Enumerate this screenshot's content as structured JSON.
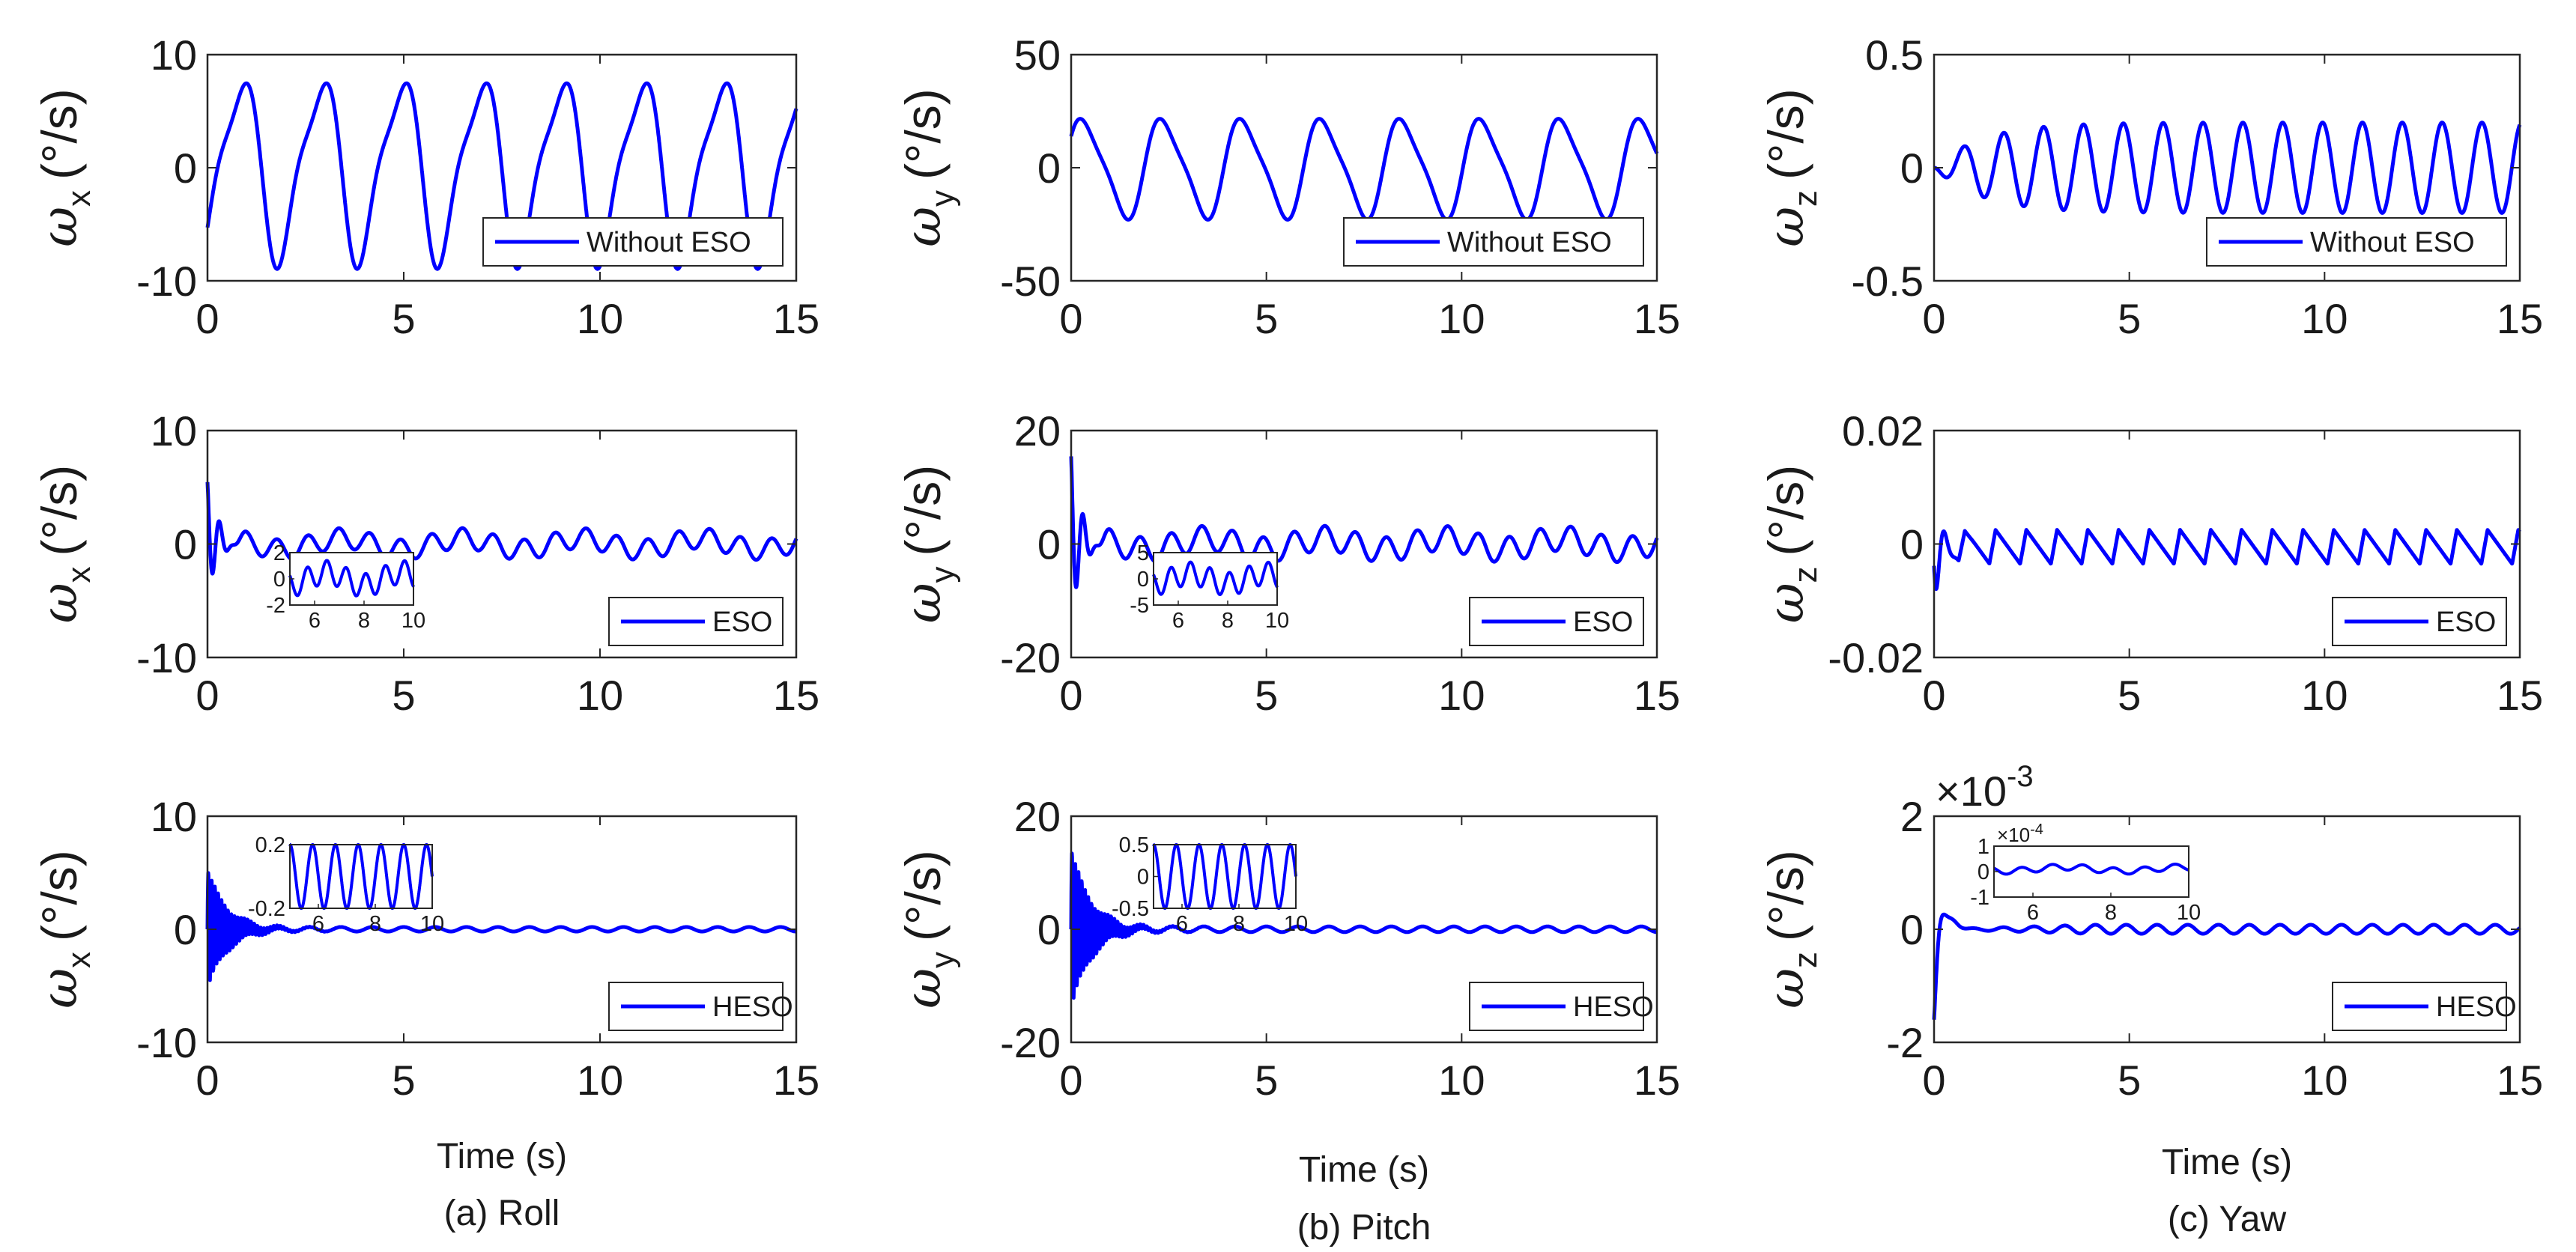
{
  "chart_data": [
    {
      "id": "roll-without-eso",
      "type": "line",
      "column": "(a) Roll",
      "ylabel": "ω",
      "ysub": "x",
      "yunit": "(°/s)",
      "legend": "Without ESO",
      "legend_pos": "bottom-right",
      "xlim": [
        0,
        15
      ],
      "ylim": [
        -10,
        10
      ],
      "xticks": [
        0,
        5,
        10,
        15
      ],
      "yticks": [
        -10,
        0,
        10
      ],
      "ytick_labels": [
        "-10",
        "0",
        "10"
      ],
      "xlabel": "",
      "signal": {
        "kind": "sustained",
        "freq": 0.49,
        "amp": 8.5,
        "phase": -1.0,
        "harm": 0.25,
        "harm_phase": 0.6
      }
    },
    {
      "id": "pitch-without-eso",
      "type": "line",
      "column": "(b) Pitch",
      "ylabel": "ω",
      "ysub": "y",
      "yunit": "(°/s)",
      "legend": "Without ESO",
      "legend_pos": "bottom-right",
      "xlim": [
        0,
        15
      ],
      "ylim": [
        -50,
        50
      ],
      "xticks": [
        0,
        5,
        10,
        15
      ],
      "yticks": [
        -50,
        0,
        50
      ],
      "ytick_labels": [
        "-50",
        "0",
        "50"
      ],
      "xlabel": "",
      "signal": {
        "kind": "sustained",
        "freq": 0.49,
        "amp": 23,
        "phase": 0.5,
        "harm": 0.2,
        "harm_phase": 1.2
      }
    },
    {
      "id": "yaw-without-eso",
      "type": "line",
      "column": "(c) Yaw",
      "ylabel": "ω",
      "ysub": "z",
      "yunit": "(°/s)",
      "legend": "Without ESO",
      "legend_pos": "bottom-right",
      "xlim": [
        0,
        15
      ],
      "ylim": [
        -0.5,
        0.5
      ],
      "xticks": [
        0,
        5,
        10,
        15
      ],
      "yticks": [
        -0.5,
        0,
        0.5
      ],
      "ytick_labels": [
        "-0.5",
        "0",
        "0.5"
      ],
      "xlabel": "",
      "signal": {
        "kind": "growing",
        "freq": 0.98,
        "amp": 0.2,
        "phase": 3.1416,
        "rise": 1.2
      }
    },
    {
      "id": "roll-eso",
      "type": "line",
      "column": "(a) Roll",
      "ylabel": "ω",
      "ysub": "x",
      "yunit": "(°/s)",
      "legend": "ESO",
      "legend_pos": "bottom-right",
      "xlim": [
        0,
        15
      ],
      "ylim": [
        -10,
        10
      ],
      "xticks": [
        0,
        5,
        10,
        15
      ],
      "yticks": [
        -10,
        0,
        10
      ],
      "ytick_labels": [
        "-10",
        "0",
        "10"
      ],
      "xlabel": "",
      "signal": {
        "kind": "transient",
        "tdecay": 0.2,
        "tamp": 6,
        "tfreq": 3.0,
        "amp1": 0.9,
        "f1": 1.27,
        "amp2": 0.5,
        "f2": 0.33
      },
      "inset": {
        "xlim": [
          5,
          10
        ],
        "ylim": [
          -2,
          2
        ],
        "xticks": [
          6,
          8,
          10
        ],
        "yticks": [
          -2,
          0,
          2
        ],
        "ytick_labels": [
          "-2",
          "0",
          "2"
        ],
        "pos": "lower-left"
      }
    },
    {
      "id": "pitch-eso",
      "type": "line",
      "column": "(b) Pitch",
      "ylabel": "ω",
      "ysub": "y",
      "yunit": "(°/s)",
      "legend": "ESO",
      "legend_pos": "bottom-right",
      "xlim": [
        0,
        15
      ],
      "ylim": [
        -20,
        20
      ],
      "xticks": [
        0,
        5,
        10,
        15
      ],
      "yticks": [
        -20,
        0,
        20
      ],
      "ytick_labels": [
        "-20",
        "0",
        "20"
      ],
      "xlabel": "",
      "signal": {
        "kind": "transient",
        "tdecay": 0.2,
        "tamp": 17,
        "tfreq": 3.0,
        "amp1": 2.2,
        "f1": 1.27,
        "amp2": 1.0,
        "f2": 0.33
      },
      "inset": {
        "xlim": [
          5,
          10
        ],
        "ylim": [
          -5,
          5
        ],
        "xticks": [
          6,
          8,
          10
        ],
        "yticks": [
          -5,
          0,
          5
        ],
        "ytick_labels": [
          "-5",
          "0",
          "5"
        ],
        "pos": "lower-left"
      }
    },
    {
      "id": "yaw-eso",
      "type": "line",
      "column": "(c) Yaw",
      "ylabel": "ω",
      "ysub": "z",
      "yunit": "(°/s)",
      "legend": "ESO",
      "legend_pos": "bottom-right",
      "xlim": [
        0,
        15
      ],
      "ylim": [
        -0.02,
        0.02
      ],
      "xticks": [
        0,
        5,
        10,
        15
      ],
      "yticks": [
        -0.02,
        0,
        0.02
      ],
      "ytick_labels": [
        "-0.02",
        "0",
        "0.02"
      ],
      "xlabel": "",
      "signal": {
        "kind": "sawtooth",
        "tdecay": 0.15,
        "tamp": -0.013,
        "tfreq": 2.5,
        "freq": 1.27,
        "amp": 0.003,
        "offset": -0.0005
      }
    },
    {
      "id": "roll-heso",
      "type": "line",
      "column": "(a) Roll",
      "ylabel": "ω",
      "ysub": "x",
      "yunit": "(°/s)",
      "legend": "HESO",
      "legend_pos": "bottom-right",
      "xlim": [
        0,
        15
      ],
      "ylim": [
        -10,
        10
      ],
      "xticks": [
        0,
        5,
        10,
        15
      ],
      "yticks": [
        -10,
        0,
        10
      ],
      "ytick_labels": [
        "-10",
        "0",
        "10"
      ],
      "xlabel": "Time (s)",
      "signal": {
        "kind": "chatter",
        "tdecay": 0.5,
        "tamp": 5.2,
        "tfreq": 12,
        "freq": 1.25,
        "amp": 0.2
      },
      "inset": {
        "xlim": [
          5,
          10
        ],
        "ylim": [
          -0.2,
          0.2
        ],
        "xticks": [
          6,
          8,
          10
        ],
        "yticks": [
          -0.2,
          0.2
        ],
        "ytick_labels": [
          "-0.2",
          "0.2"
        ],
        "pos": "upper-left",
        "sig_amp": 0.2
      }
    },
    {
      "id": "pitch-heso",
      "type": "line",
      "column": "(b) Pitch",
      "ylabel": "ω",
      "ysub": "y",
      "yunit": "(°/s)",
      "legend": "HESO",
      "legend_pos": "bottom-right",
      "xlim": [
        0,
        15
      ],
      "ylim": [
        -20,
        20
      ],
      "xticks": [
        0,
        5,
        10,
        15
      ],
      "yticks": [
        -20,
        0,
        20
      ],
      "ytick_labels": [
        "-20",
        "0",
        "20"
      ],
      "xlabel": "Time (s)",
      "signal": {
        "kind": "chatter",
        "tdecay": 0.5,
        "tamp": 14,
        "tfreq": 12,
        "freq": 1.25,
        "amp": 0.5
      },
      "inset": {
        "xlim": [
          5,
          10
        ],
        "ylim": [
          -0.5,
          0.5
        ],
        "xticks": [
          6,
          8,
          10
        ],
        "yticks": [
          -0.5,
          0,
          0.5
        ],
        "ytick_labels": [
          "-0.5",
          "0",
          "0.5"
        ],
        "pos": "upper-left",
        "sig_amp": 0.5
      }
    },
    {
      "id": "yaw-heso",
      "type": "line",
      "column": "(c) Yaw",
      "ylabel": "ω",
      "ysub": "z",
      "yunit": "(°/s)",
      "legend": "HESO",
      "legend_pos": "bottom-right",
      "xlim": [
        0,
        15
      ],
      "ylim": [
        -2,
        2
      ],
      "xticks": [
        0,
        5,
        10,
        15
      ],
      "yticks": [
        -2,
        0,
        2
      ],
      "ytick_labels": [
        "-2",
        "0",
        "2"
      ],
      "yexp": "×10",
      "yexp_power": "-3",
      "xlabel": "Time (s)",
      "signal": {
        "kind": "yawheso",
        "tdecay": 0.12,
        "tamp": -1.6,
        "tfreq": 3.5,
        "freq": 1.27,
        "amp": 0.08
      },
      "inset": {
        "xlim": [
          5,
          10
        ],
        "ylim": [
          -1,
          1
        ],
        "xticks": [
          6,
          8,
          10
        ],
        "yticks": [
          -1,
          0,
          1
        ],
        "ytick_labels": [
          "-1",
          "0",
          "1"
        ],
        "pos": "upper-left",
        "yexp": "×10",
        "yexp_power": "-4",
        "sig_amp": 0.2
      }
    }
  ],
  "captions": [
    "(a) Roll",
    "(b) Pitch",
    "(c) Yaw"
  ],
  "line_color": "#0000ff"
}
